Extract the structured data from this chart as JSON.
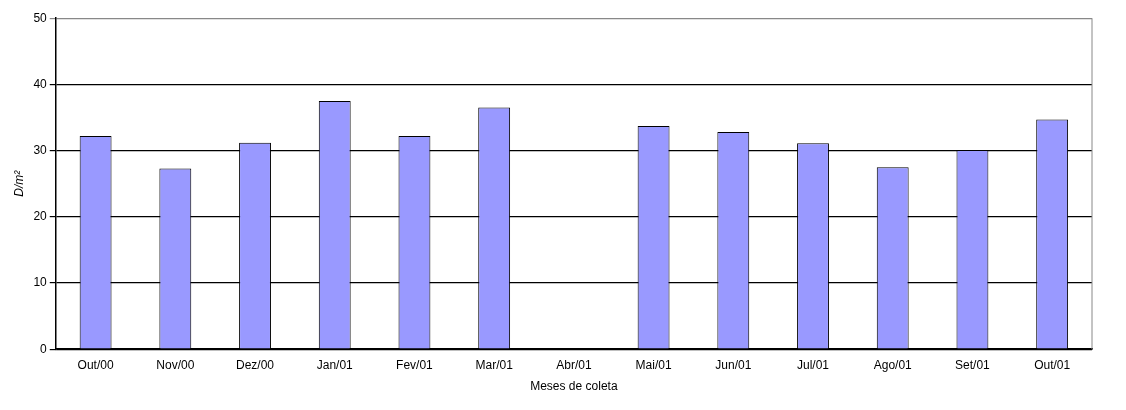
{
  "chart_data": {
    "type": "bar",
    "xlabel": "Meses de coleta",
    "ylabel": "D/m²",
    "categories": [
      "Out/00",
      "Nov/00",
      "Dez/00",
      "Jan/01",
      "Fev/01",
      "Mar/01",
      "Abr/01",
      "Mai/01",
      "Jun/01",
      "Jul/01",
      "Ago/01",
      "Set/01",
      "Out/01"
    ],
    "values": [
      32.2,
      27.3,
      31.2,
      37.5,
      32.2,
      36.5,
      null,
      33.7,
      32.8,
      31.1,
      27.5,
      30.1,
      34.7
    ],
    "color": "#9999ff",
    "ylim": [
      0,
      50
    ],
    "yticks": [
      0,
      10,
      20,
      30,
      40,
      50
    ],
    "grid": "y"
  }
}
